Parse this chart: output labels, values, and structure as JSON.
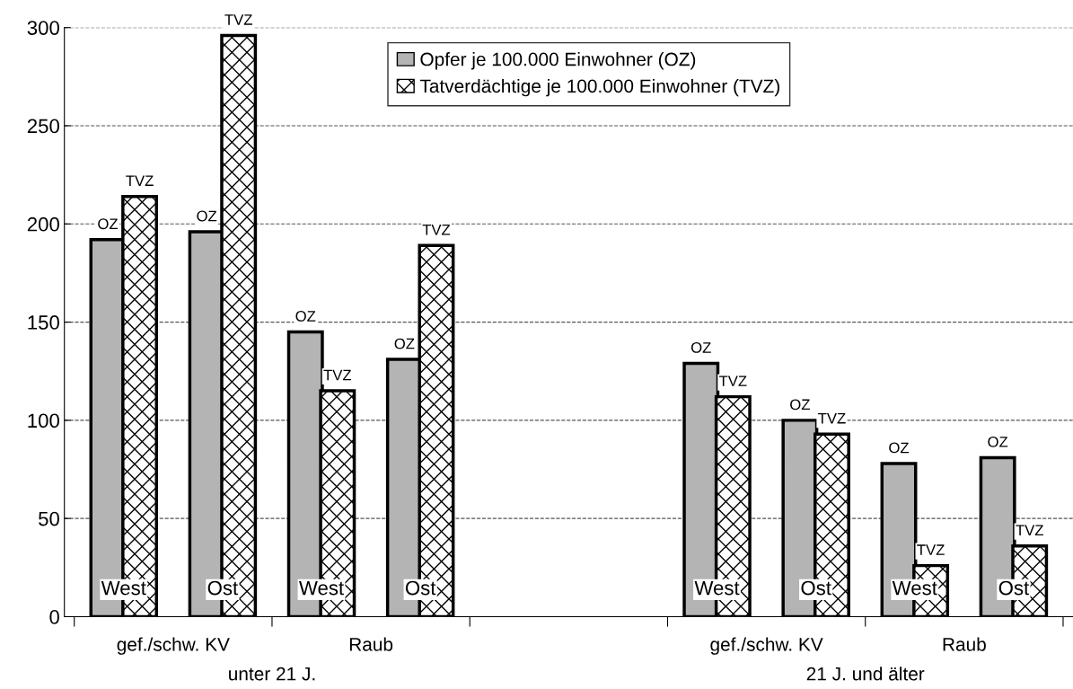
{
  "chart_data": {
    "type": "bar",
    "categories": [
      "West",
      "Ost",
      "West",
      "Ost",
      null,
      null,
      "West",
      "Ost",
      "West",
      "Ost"
    ],
    "series": [
      {
        "name": "Opfer je 100.000 Einwohner (OZ)",
        "color": "#b4b4b4",
        "values": [
          192,
          196,
          145,
          131,
          null,
          null,
          129,
          100,
          78,
          81
        ],
        "value_labels": [
          "OZ",
          "OZ",
          "OZ",
          "OZ",
          null,
          null,
          "OZ",
          "OZ",
          "OZ",
          "OZ"
        ]
      },
      {
        "name": "Tatverdächtige je 100.000 Einwohner (TVZ)",
        "color": "#000000",
        "values": [
          214,
          296,
          115,
          189,
          null,
          null,
          112,
          93,
          26,
          36
        ],
        "value_labels": [
          "TVZ",
          "TVZ",
          "TVZ",
          "TVZ",
          null,
          null,
          "TVZ",
          "TVZ",
          "TVZ",
          "TVZ"
        ]
      }
    ],
    "annotations": [
      "gef./schw. KV",
      "Raub",
      "gef./schw. KV",
      "Raub",
      "unter 21 J.",
      "21 J. und älter"
    ],
    "ylim": [
      0,
      300
    ],
    "yticks": [
      0,
      50,
      100,
      150,
      200,
      250,
      300
    ],
    "grid": "y",
    "legend": "top"
  }
}
